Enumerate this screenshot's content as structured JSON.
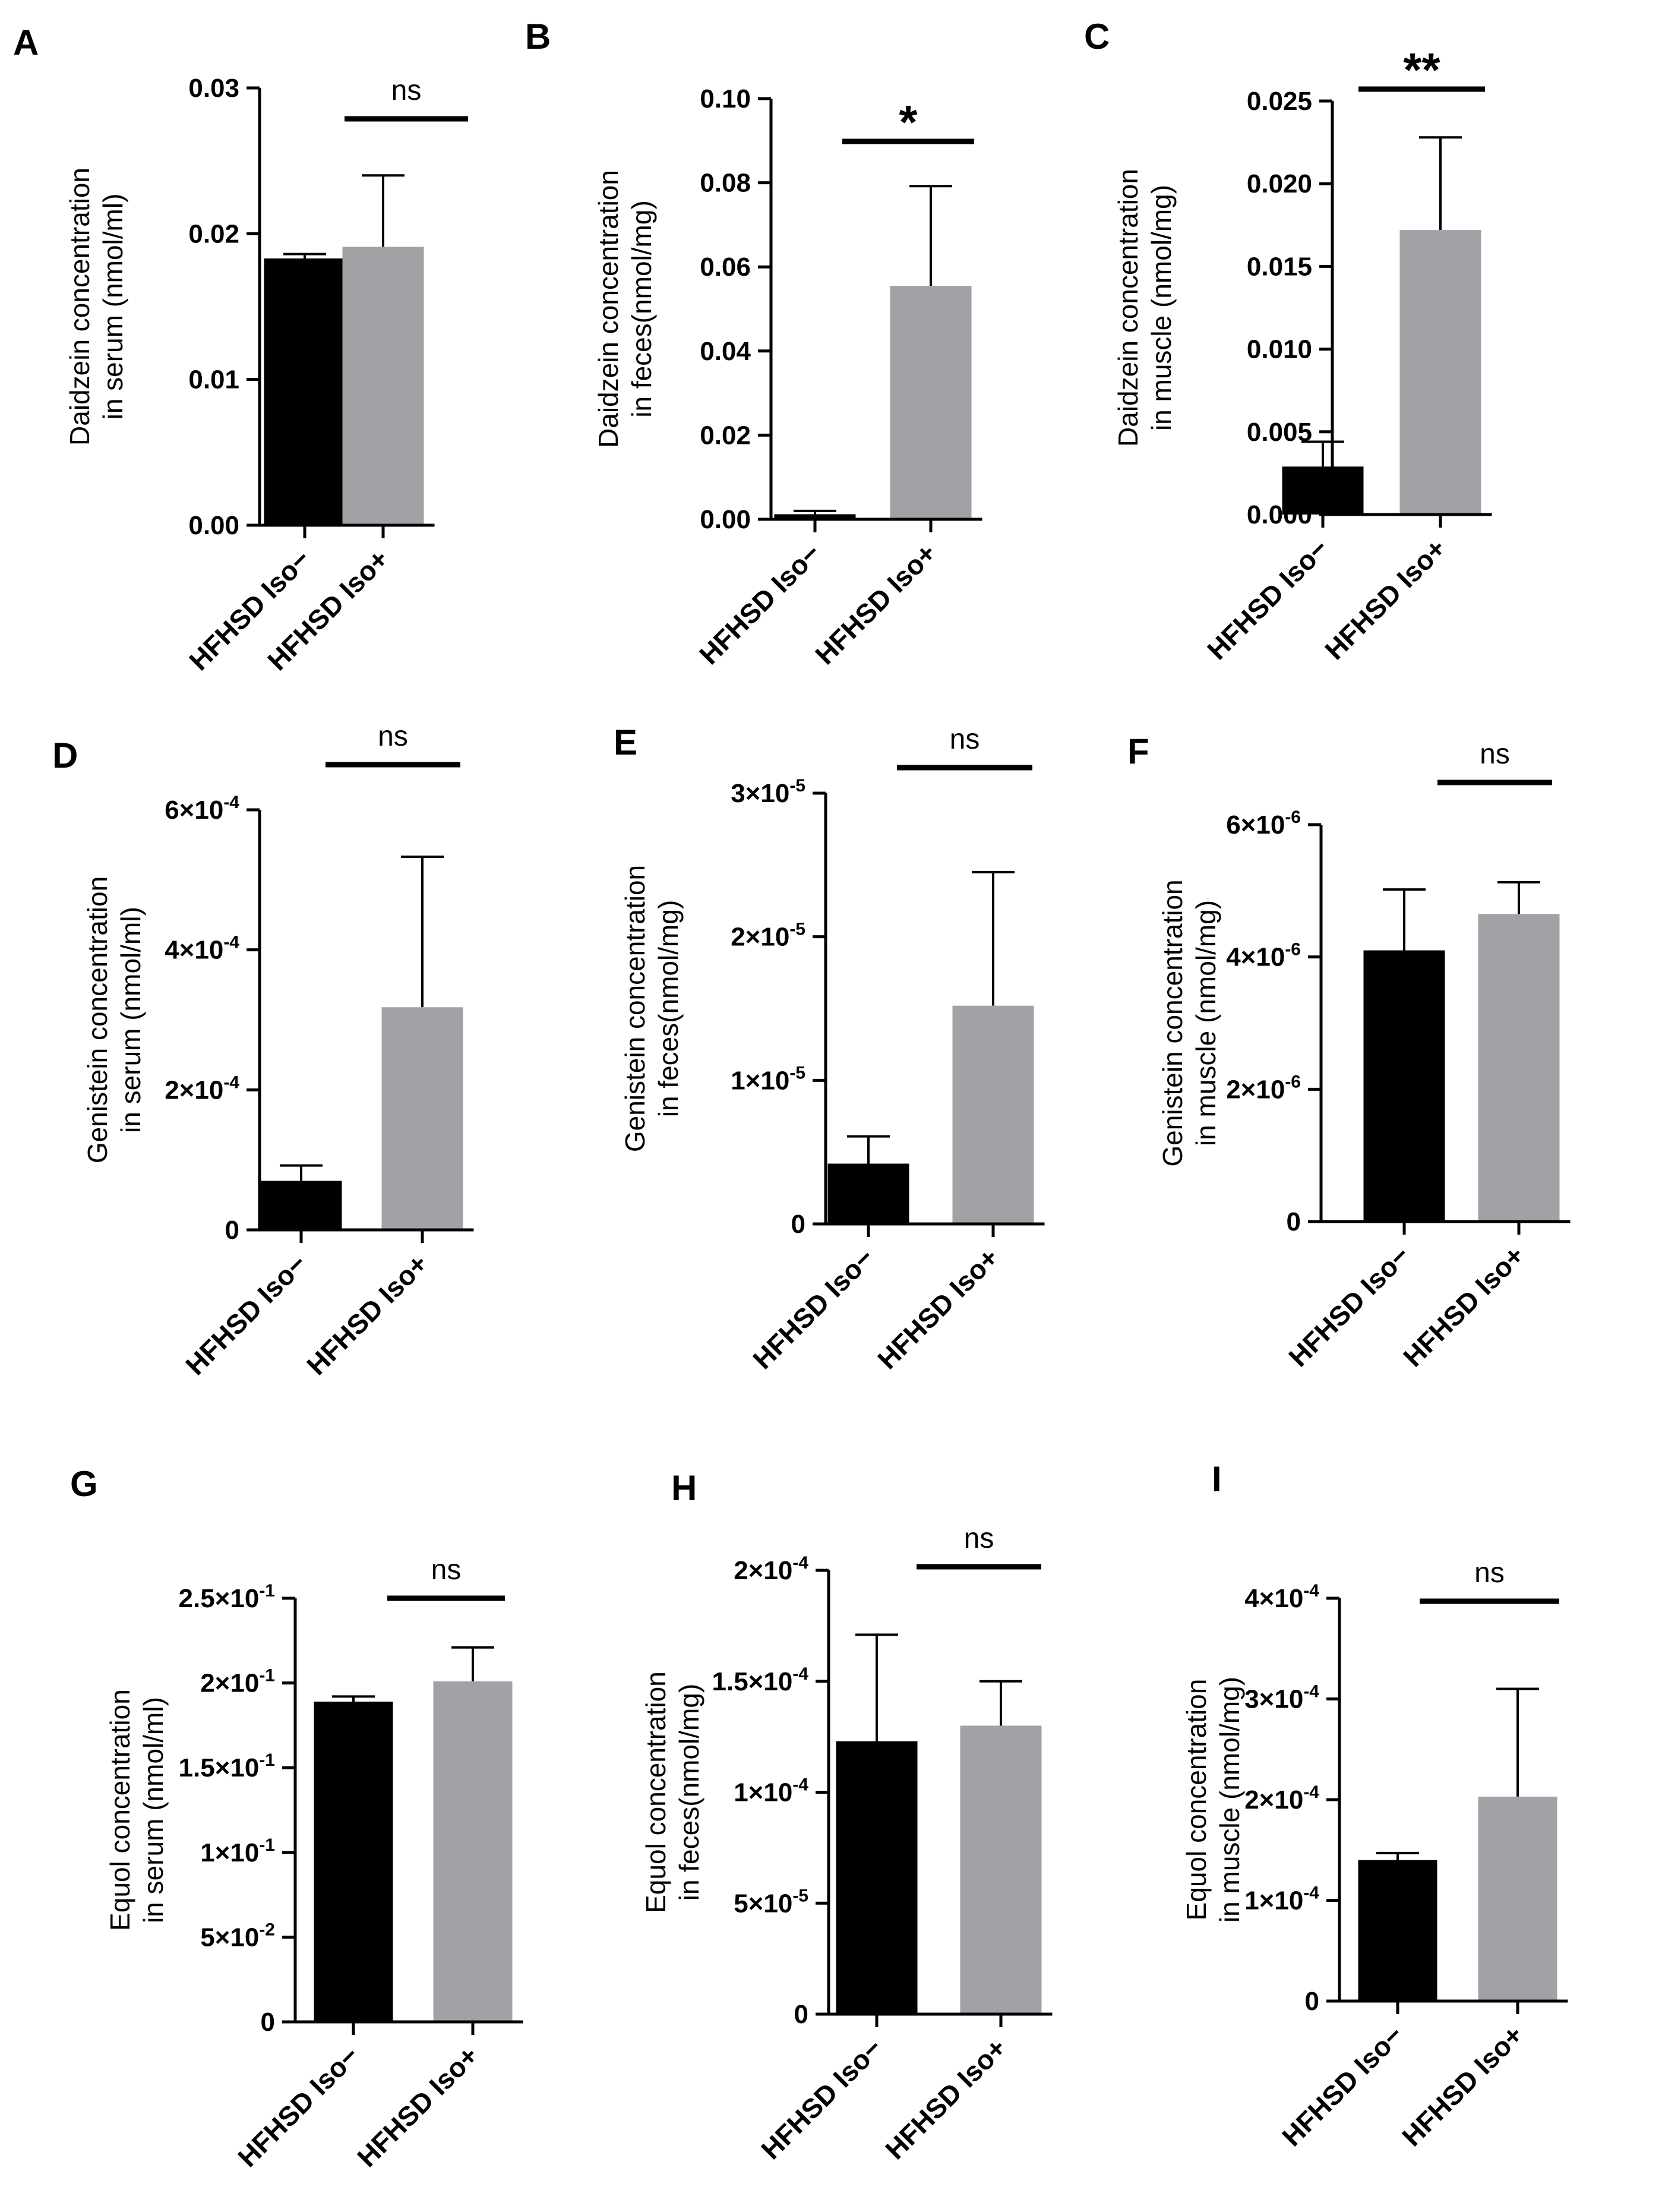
{
  "chart_data": [
    {
      "type": "bar",
      "panel": "A",
      "categories": [
        "HFHSD Iso−",
        "HFHSD Iso+"
      ],
      "values": [
        0.0183,
        0.0191
      ],
      "errors": [
        0.0003,
        0.0049
      ],
      "ylabel": [
        "Daidzein concentration",
        "in serum (nmol/ml)"
      ],
      "ylim": [
        0,
        0.03
      ],
      "yticks": [
        0,
        0.01,
        0.02,
        0.03
      ],
      "ytick_labels": [
        {
          "base": "0.00",
          "exp": ""
        },
        {
          "base": "0.01",
          "exp": ""
        },
        {
          "base": "0.02",
          "exp": ""
        },
        {
          "base": "0.03",
          "exp": ""
        }
      ],
      "significance": "ns",
      "bar_colors": [
        "#000000",
        "#a2a2a6"
      ]
    },
    {
      "type": "bar",
      "panel": "B",
      "categories": [
        "HFHSD Iso−",
        "HFHSD Iso+"
      ],
      "values": [
        0.0012,
        0.0555
      ],
      "errors": [
        0.0008,
        0.0237
      ],
      "ylabel": [
        "Daidzein concentration",
        "in feces(nmol/mg)"
      ],
      "ylim": [
        0,
        0.1
      ],
      "yticks": [
        0,
        0.02,
        0.04,
        0.06,
        0.08,
        0.1
      ],
      "ytick_labels": [
        {
          "base": "0.00",
          "exp": ""
        },
        {
          "base": "0.02",
          "exp": ""
        },
        {
          "base": "0.04",
          "exp": ""
        },
        {
          "base": "0.06",
          "exp": ""
        },
        {
          "base": "0.08",
          "exp": ""
        },
        {
          "base": "0.10",
          "exp": ""
        }
      ],
      "significance": "*",
      "bar_colors": [
        "#000000",
        "#a2a2a6"
      ]
    },
    {
      "type": "bar",
      "panel": "C",
      "categories": [
        "HFHSD Iso−",
        "HFHSD Iso+"
      ],
      "values": [
        0.0029,
        0.0172
      ],
      "errors": [
        0.0015,
        0.0056
      ],
      "ylabel": [
        "Daidzein concentration",
        "in muscle (nmol/mg)"
      ],
      "ylim": [
        0,
        0.025
      ],
      "yticks": [
        0,
        0.005,
        0.01,
        0.015,
        0.02,
        0.025
      ],
      "ytick_labels": [
        {
          "base": "0.000",
          "exp": ""
        },
        {
          "base": "0.005",
          "exp": ""
        },
        {
          "base": "0.010",
          "exp": ""
        },
        {
          "base": "0.015",
          "exp": ""
        },
        {
          "base": "0.020",
          "exp": ""
        },
        {
          "base": "0.025",
          "exp": ""
        }
      ],
      "significance": "**",
      "bar_colors": [
        "#000000",
        "#a2a2a6"
      ]
    },
    {
      "type": "bar",
      "panel": "D",
      "categories": [
        "HFHSD Iso−",
        "HFHSD Iso+"
      ],
      "values": [
        7e-05,
        0.000318
      ],
      "errors": [
        2.2e-05,
        0.000215
      ],
      "ylabel": [
        "Genistein concentration",
        "in serum (nmol/ml)"
      ],
      "ylim": [
        0,
        0.0006
      ],
      "yticks": [
        0,
        0.0002,
        0.0004,
        0.0006
      ],
      "ytick_labels": [
        {
          "base": "0",
          "exp": ""
        },
        {
          "base": "2×10",
          "exp": "-4"
        },
        {
          "base": "4×10",
          "exp": "-4"
        },
        {
          "base": "6×10",
          "exp": "-4"
        }
      ],
      "significance": "ns",
      "bar_colors": [
        "#000000",
        "#a2a2a6"
      ]
    },
    {
      "type": "bar",
      "panel": "E",
      "categories": [
        "HFHSD Iso−",
        "HFHSD Iso+"
      ],
      "values": [
        4.2e-06,
        1.52e-05
      ],
      "errors": [
        1.9e-06,
        9.3e-06
      ],
      "ylabel": [
        "Genistein concentration",
        "in feces(nmol/mg)"
      ],
      "ylim": [
        0,
        3e-05
      ],
      "yticks": [
        0,
        1e-05,
        2e-05,
        3e-05
      ],
      "ytick_labels": [
        {
          "base": "0",
          "exp": ""
        },
        {
          "base": "1×10",
          "exp": "-5"
        },
        {
          "base": "2×10",
          "exp": "-5"
        },
        {
          "base": "3×10",
          "exp": "-5"
        }
      ],
      "significance": "ns",
      "bar_colors": [
        "#000000",
        "#a2a2a6"
      ]
    },
    {
      "type": "bar",
      "panel": "F",
      "categories": [
        "HFHSD Iso−",
        "HFHSD Iso+"
      ],
      "values": [
        4.1e-06,
        4.65e-06
      ],
      "errors": [
        9.2e-07,
        4.8e-07
      ],
      "ylabel": [
        "Genistein concentration",
        "in muscle (nmol/mg)"
      ],
      "ylim": [
        0,
        6e-06
      ],
      "yticks": [
        0,
        2e-06,
        4e-06,
        6e-06
      ],
      "ytick_labels": [
        {
          "base": "0",
          "exp": ""
        },
        {
          "base": "2×10",
          "exp": "-6"
        },
        {
          "base": "4×10",
          "exp": "-6"
        },
        {
          "base": "6×10",
          "exp": "-6"
        }
      ],
      "significance": "ns",
      "bar_colors": [
        "#000000",
        "#a2a2a6"
      ]
    },
    {
      "type": "bar",
      "panel": "G",
      "categories": [
        "HFHSD Iso−",
        "HFHSD Iso+"
      ],
      "values": [
        0.189,
        0.201
      ],
      "errors": [
        0.003,
        0.02
      ],
      "ylabel": [
        "Equol concentration",
        "in serum (nmol/ml)"
      ],
      "ylim": [
        0,
        0.25
      ],
      "yticks": [
        0,
        0.05,
        0.1,
        0.15,
        0.2,
        0.25
      ],
      "ytick_labels": [
        {
          "base": "0",
          "exp": ""
        },
        {
          "base": "5×10",
          "exp": "-2"
        },
        {
          "base": "1×10",
          "exp": "-1"
        },
        {
          "base": "1.5×10",
          "exp": "-1"
        },
        {
          "base": "2×10",
          "exp": "-1"
        },
        {
          "base": "2.5×10",
          "exp": "-1"
        }
      ],
      "significance": "ns",
      "bar_colors": [
        "#000000",
        "#a2a2a6"
      ]
    },
    {
      "type": "bar",
      "panel": "H",
      "categories": [
        "HFHSD Iso−",
        "HFHSD Iso+"
      ],
      "values": [
        0.000123,
        0.00013
      ],
      "errors": [
        4.8e-05,
        2e-05
      ],
      "ylabel": [
        "Equol concentration",
        "in feces(nmol/mg)"
      ],
      "ylim": [
        0,
        0.0002
      ],
      "yticks": [
        0,
        5e-05,
        0.0001,
        0.00015,
        0.0002
      ],
      "ytick_labels": [
        {
          "base": "0",
          "exp": ""
        },
        {
          "base": "5×10",
          "exp": "-5"
        },
        {
          "base": "1×10",
          "exp": "-4"
        },
        {
          "base": "1.5×10",
          "exp": "-4"
        },
        {
          "base": "2×10",
          "exp": "-4"
        }
      ],
      "significance": "ns",
      "bar_colors": [
        "#000000",
        "#a2a2a6"
      ]
    },
    {
      "type": "bar",
      "panel": "I",
      "categories": [
        "HFHSD Iso−",
        "HFHSD Iso+"
      ],
      "values": [
        0.00014,
        0.000203
      ],
      "errors": [
        7e-06,
        0.000107
      ],
      "ylabel": [
        "Equol concentration",
        "in muscle (nmol/mg)"
      ],
      "ylim": [
        0,
        0.0004
      ],
      "yticks": [
        0,
        0.0001,
        0.0002,
        0.0003,
        0.0004
      ],
      "ytick_labels": [
        {
          "base": "0",
          "exp": ""
        },
        {
          "base": "1×10",
          "exp": "-4"
        },
        {
          "base": "2×10",
          "exp": "-4"
        },
        {
          "base": "3×10",
          "exp": "-4"
        },
        {
          "base": "4×10",
          "exp": "-4"
        }
      ],
      "significance": "ns",
      "bar_colors": [
        "#000000",
        "#a2a2a6"
      ]
    }
  ]
}
